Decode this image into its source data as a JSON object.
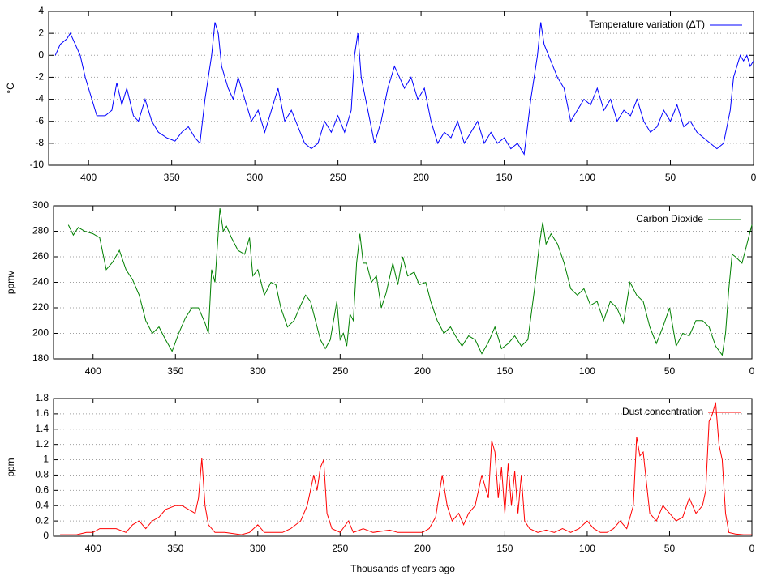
{
  "chart_data": [
    {
      "type": "line",
      "y_label": "°C",
      "x": [
        420,
        417,
        413,
        411,
        408,
        405,
        402,
        398,
        395,
        390,
        386,
        383,
        380,
        377,
        373,
        370,
        366,
        362,
        358,
        353,
        348,
        344,
        340,
        336,
        333,
        330,
        326,
        324,
        322,
        320,
        316,
        313,
        310,
        306,
        302,
        298,
        294,
        290,
        286,
        282,
        278,
        274,
        270,
        266,
        262,
        258,
        254,
        250,
        246,
        242,
        240,
        238,
        236,
        232,
        228,
        224,
        220,
        216,
        213,
        210,
        206,
        202,
        198,
        194,
        190,
        186,
        182,
        178,
        174,
        170,
        166,
        162,
        158,
        154,
        150,
        146,
        142,
        138,
        134,
        130,
        128,
        126,
        122,
        118,
        114,
        110,
        106,
        102,
        98,
        94,
        90,
        86,
        82,
        78,
        74,
        70,
        66,
        62,
        58,
        54,
        50,
        46,
        42,
        38,
        34,
        30,
        26,
        22,
        18,
        14,
        12,
        10,
        8,
        6,
        4,
        2,
        0
      ],
      "series": [
        {
          "name": "Temperature variation (ΔT)",
          "color": "#0000ff",
          "values": [
            0,
            1,
            1.5,
            2,
            1,
            0,
            -2,
            -4,
            -5.5,
            -5.5,
            -5,
            -2.5,
            -4.5,
            -3,
            -5.5,
            -6,
            -4,
            -6,
            -7,
            -7.5,
            -7.8,
            -7,
            -6.5,
            -7.5,
            -8,
            -4,
            0,
            3,
            2,
            -1,
            -3,
            -4,
            -2,
            -4,
            -6,
            -5,
            -7,
            -5,
            -3,
            -6,
            -5,
            -6.5,
            -8,
            -8.5,
            -8,
            -6,
            -7,
            -5.5,
            -7,
            -5,
            0,
            2,
            -2,
            -5,
            -8,
            -6,
            -3,
            -1,
            -2,
            -3,
            -2,
            -4,
            -3,
            -6,
            -8,
            -7,
            -7.5,
            -6,
            -8,
            -7,
            -6,
            -8,
            -7,
            -8,
            -7.5,
            -8.5,
            -8,
            -9,
            -4,
            0,
            3,
            1,
            -0.5,
            -2,
            -3,
            -6,
            -5,
            -4,
            -4.5,
            -3,
            -5,
            -4,
            -6,
            -5,
            -5.5,
            -4,
            -6,
            -7,
            -6.5,
            -5,
            -6,
            -4.5,
            -6.5,
            -6,
            -7,
            -7.5,
            -8,
            -8.5,
            -8,
            -5,
            -2,
            -1,
            0,
            -0.5,
            0,
            -1,
            -0.5
          ]
        }
      ],
      "xlim": [
        424,
        0
      ],
      "xticks": [
        400,
        350,
        300,
        250,
        200,
        150,
        100,
        50,
        0
      ],
      "ylim": [
        -10,
        4
      ],
      "yticks": [
        -10,
        -8,
        -6,
        -4,
        -2,
        0,
        2,
        4
      ],
      "grid": true,
      "legend": "upper right"
    },
    {
      "type": "line",
      "y_label": "ppmv",
      "x": [
        415,
        412,
        409,
        405,
        400,
        396,
        392,
        388,
        384,
        380,
        376,
        372,
        368,
        364,
        360,
        356,
        352,
        348,
        344,
        340,
        336,
        332,
        330,
        328,
        326,
        323,
        321,
        319,
        316,
        312,
        308,
        305,
        303,
        300,
        296,
        292,
        289,
        286,
        282,
        278,
        274,
        271,
        268,
        265,
        262,
        259,
        256,
        254,
        252,
        250,
        248,
        246,
        244,
        242,
        240,
        238,
        236,
        234,
        231,
        228,
        225,
        222,
        218,
        215,
        212,
        209,
        205,
        202,
        198,
        195,
        191,
        187,
        183,
        180,
        176,
        172,
        168,
        164,
        160,
        156,
        152,
        148,
        144,
        140,
        136,
        132,
        129,
        127,
        125,
        122,
        118,
        114,
        110,
        106,
        102,
        98,
        94,
        90,
        86,
        82,
        78,
        74,
        70,
        66,
        62,
        58,
        54,
        50,
        46,
        42,
        38,
        34,
        30,
        26,
        22,
        18,
        16,
        14,
        12,
        10,
        6,
        4,
        2,
        0
      ],
      "series": [
        {
          "name": "Carbon Dioxide",
          "color": "#008000",
          "values": [
            285,
            277,
            283,
            280,
            278,
            275,
            250,
            256,
            265,
            250,
            242,
            230,
            210,
            200,
            205,
            195,
            186,
            200,
            212,
            220,
            220,
            208,
            200,
            250,
            240,
            298,
            280,
            284,
            275,
            265,
            262,
            275,
            245,
            250,
            230,
            240,
            238,
            220,
            205,
            210,
            222,
            230,
            225,
            210,
            195,
            188,
            195,
            210,
            225,
            195,
            200,
            190,
            215,
            210,
            255,
            278,
            255,
            255,
            240,
            245,
            220,
            232,
            255,
            238,
            260,
            245,
            248,
            238,
            240,
            225,
            210,
            200,
            205,
            198,
            190,
            198,
            195,
            184,
            193,
            205,
            188,
            192,
            198,
            190,
            195,
            235,
            270,
            287,
            270,
            278,
            270,
            255,
            235,
            230,
            235,
            222,
            225,
            210,
            225,
            220,
            208,
            240,
            230,
            225,
            205,
            192,
            205,
            220,
            190,
            200,
            198,
            210,
            210,
            205,
            190,
            183,
            200,
            235,
            262,
            260,
            255,
            265,
            275,
            285
          ]
        }
      ],
      "xlim": [
        424,
        0
      ],
      "xticks": [
        400,
        350,
        300,
        250,
        200,
        150,
        100,
        50,
        0
      ],
      "ylim": [
        180,
        300
      ],
      "yticks": [
        180,
        200,
        220,
        240,
        260,
        280,
        300
      ],
      "grid": true,
      "legend": "upper right"
    },
    {
      "type": "line",
      "y_label": "ppm",
      "x_label": "Thousands of years ago",
      "x": [
        420,
        410,
        404,
        400,
        396,
        392,
        386,
        380,
        376,
        372,
        368,
        364,
        360,
        356,
        350,
        346,
        342,
        338,
        336,
        334,
        332,
        330,
        326,
        320,
        310,
        305,
        300,
        296,
        290,
        285,
        280,
        274,
        270,
        266,
        264,
        262,
        260,
        258,
        255,
        250,
        245,
        242,
        236,
        230,
        220,
        215,
        210,
        200,
        196,
        192,
        188,
        185,
        182,
        178,
        175,
        172,
        168,
        164,
        160,
        158,
        156,
        154,
        152,
        150,
        148,
        146,
        144,
        142,
        140,
        138,
        135,
        130,
        125,
        120,
        115,
        110,
        105,
        100,
        96,
        92,
        88,
        84,
        80,
        76,
        72,
        70,
        68,
        66,
        64,
        62,
        58,
        54,
        50,
        46,
        42,
        38,
        34,
        30,
        28,
        26,
        24,
        22,
        20,
        18,
        16,
        14,
        10,
        5,
        0
      ],
      "series": [
        {
          "name": "Dust concentration",
          "color": "#ff0000",
          "values": [
            0.02,
            0.02,
            0.05,
            0.05,
            0.1,
            0.1,
            0.1,
            0.05,
            0.15,
            0.2,
            0.1,
            0.2,
            0.25,
            0.35,
            0.4,
            0.4,
            0.35,
            0.3,
            0.5,
            1.02,
            0.4,
            0.15,
            0.05,
            0.05,
            0.02,
            0.05,
            0.15,
            0.05,
            0.05,
            0.05,
            0.1,
            0.2,
            0.4,
            0.8,
            0.6,
            0.9,
            1.0,
            0.3,
            0.1,
            0.05,
            0.2,
            0.05,
            0.1,
            0.05,
            0.08,
            0.05,
            0.05,
            0.05,
            0.1,
            0.25,
            0.8,
            0.4,
            0.2,
            0.3,
            0.15,
            0.3,
            0.4,
            0.8,
            0.5,
            1.25,
            1.1,
            0.5,
            0.9,
            0.3,
            0.95,
            0.4,
            0.85,
            0.3,
            0.8,
            0.2,
            0.1,
            0.05,
            0.08,
            0.05,
            0.1,
            0.05,
            0.1,
            0.2,
            0.1,
            0.05,
            0.05,
            0.1,
            0.2,
            0.1,
            0.4,
            1.3,
            1.05,
            1.1,
            0.7,
            0.3,
            0.2,
            0.4,
            0.3,
            0.2,
            0.25,
            0.5,
            0.3,
            0.4,
            0.6,
            1.5,
            1.6,
            1.75,
            1.2,
            1.0,
            0.3,
            0.05,
            0.03,
            0.02,
            0.02
          ]
        }
      ],
      "xlim": [
        424,
        0
      ],
      "xticks": [
        400,
        350,
        300,
        250,
        200,
        150,
        100,
        50,
        0
      ],
      "ylim": [
        0,
        1.8
      ],
      "yticks": [
        0,
        0.2,
        0.4,
        0.6,
        0.8,
        1,
        1.2,
        1.4,
        1.6,
        1.8
      ],
      "grid": true,
      "legend": "upper right"
    }
  ]
}
